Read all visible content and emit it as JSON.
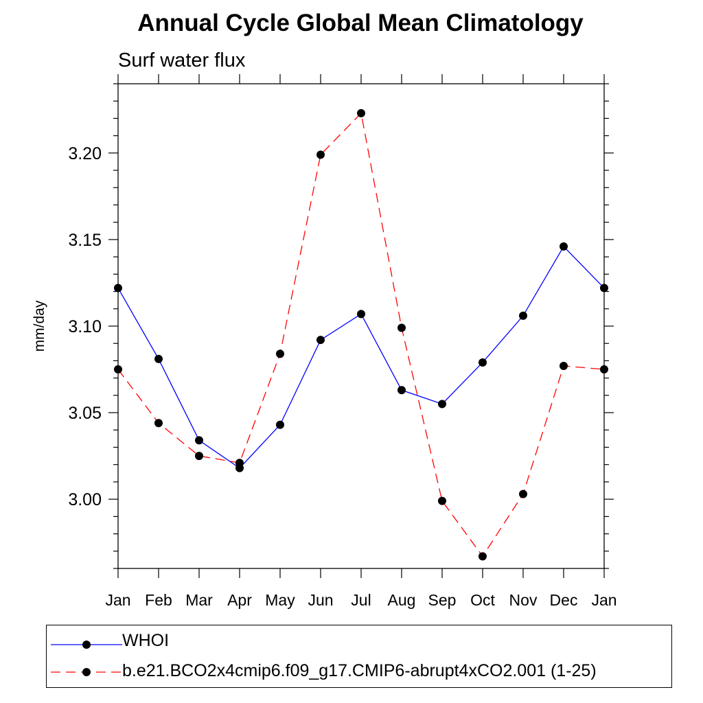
{
  "chart_data": {
    "type": "line",
    "title": "Annual Cycle Global Mean Climatology",
    "subtitle": "Surf water flux",
    "xlabel": "",
    "ylabel": "mm/day",
    "categories": [
      "Jan",
      "Feb",
      "Mar",
      "Apr",
      "May",
      "Jun",
      "Jul",
      "Aug",
      "Sep",
      "Oct",
      "Nov",
      "Dec",
      "Jan"
    ],
    "yticks": [
      "3.00",
      "3.05",
      "3.10",
      "3.15",
      "3.20"
    ],
    "ylim": [
      2.96,
      3.24
    ],
    "grid": false,
    "legend_placement": "bottom",
    "series": [
      {
        "name": "WHOI",
        "color": "#0000ff",
        "dash": "solid",
        "values": [
          3.122,
          3.081,
          3.034,
          3.018,
          3.043,
          3.092,
          3.107,
          3.063,
          3.055,
          3.079,
          3.106,
          3.146,
          3.122
        ]
      },
      {
        "name": "b.e21.BCO2x4cmip6.f09_g17.CMIP6-abrupt4xCO2.001 (1-25)",
        "color": "#ff0000",
        "dash": "dashed",
        "values": [
          3.075,
          3.044,
          3.025,
          3.021,
          3.084,
          3.199,
          3.223,
          3.099,
          2.999,
          2.967,
          3.003,
          3.077,
          3.075
        ]
      }
    ]
  }
}
